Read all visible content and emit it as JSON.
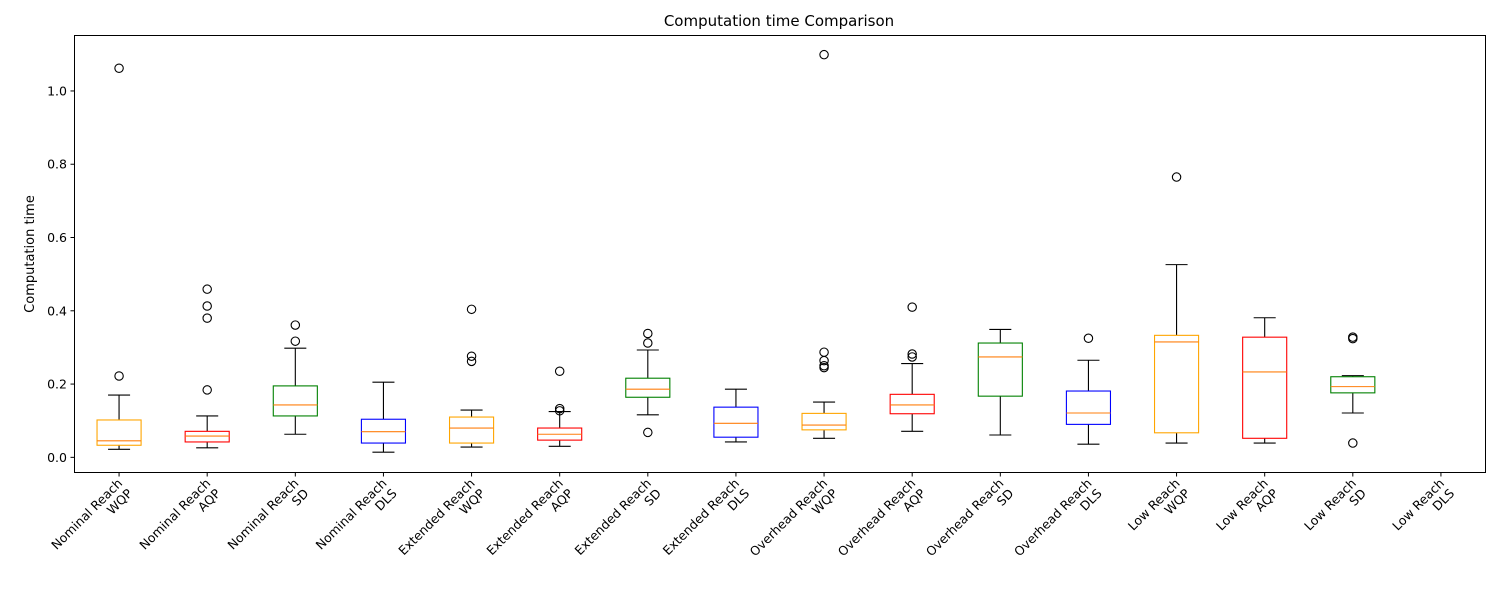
{
  "chart_data": {
    "type": "box",
    "title": "Computation time Comparison",
    "xlabel": "",
    "ylabel": "Computation time",
    "ylim": [
      -0.04,
      1.15
    ],
    "yticks": [
      0.0,
      0.2,
      0.4,
      0.6,
      0.8,
      1.0
    ],
    "ytick_labels": [
      "0.0",
      "0.2",
      "0.4",
      "0.6",
      "0.8",
      "1.0"
    ],
    "grid": false,
    "legend": "none",
    "colors": {
      "WQP": "#ffa500",
      "AQP": "#ff0000",
      "SD": "#008000",
      "DLS": "#0000ff",
      "median": "#ff7f0e",
      "whisker": "#000000"
    },
    "categories": [
      {
        "label": "Nominal Reach\nWQP",
        "line1": "Nominal Reach",
        "line2": "WQP",
        "method": "WQP",
        "whislo": 0.022,
        "q1": 0.033,
        "median": 0.045,
        "q3": 0.102,
        "whishi": 0.17,
        "fliers": [
          0.222,
          1.062
        ]
      },
      {
        "label": "Nominal Reach\nAQP",
        "line1": "Nominal Reach",
        "line2": "AQP",
        "method": "AQP",
        "whislo": 0.026,
        "q1": 0.042,
        "median": 0.058,
        "q3": 0.071,
        "whishi": 0.113,
        "fliers": [
          0.184,
          0.38,
          0.413,
          0.459
        ]
      },
      {
        "label": "Nominal Reach\nSD",
        "line1": "Nominal Reach",
        "line2": "SD",
        "method": "SD",
        "whislo": 0.063,
        "q1": 0.113,
        "median": 0.143,
        "q3": 0.195,
        "whishi": 0.298,
        "fliers": [
          0.317,
          0.361
        ]
      },
      {
        "label": "Nominal Reach\nDLS",
        "line1": "Nominal Reach",
        "line2": "DLS",
        "method": "DLS",
        "whislo": 0.014,
        "q1": 0.039,
        "median": 0.07,
        "q3": 0.104,
        "whishi": 0.205,
        "fliers": []
      },
      {
        "label": "Extended Reach\nWQP",
        "line1": "Extended Reach",
        "line2": "WQP",
        "method": "WQP",
        "whislo": 0.028,
        "q1": 0.039,
        "median": 0.08,
        "q3": 0.11,
        "whishi": 0.129,
        "fliers": [
          0.262,
          0.276,
          0.404
        ]
      },
      {
        "label": "Extended Reach\nAQP",
        "line1": "Extended Reach",
        "line2": "AQP",
        "method": "AQP",
        "whislo": 0.03,
        "q1": 0.047,
        "median": 0.063,
        "q3": 0.08,
        "whishi": 0.125,
        "fliers": [
          0.127,
          0.133,
          0.235
        ]
      },
      {
        "label": "Extended Reach\nSD",
        "line1": "Extended Reach",
        "line2": "SD",
        "method": "SD",
        "whislo": 0.116,
        "q1": 0.164,
        "median": 0.186,
        "q3": 0.216,
        "whishi": 0.293,
        "fliers": [
          0.068,
          0.312,
          0.338
        ]
      },
      {
        "label": "Extended Reach\nDLS",
        "line1": "Extended Reach",
        "line2": "DLS",
        "method": "DLS",
        "whislo": 0.042,
        "q1": 0.055,
        "median": 0.093,
        "q3": 0.137,
        "whishi": 0.186,
        "fliers": []
      },
      {
        "label": "Overhead Reach\nWQP",
        "line1": "Overhead Reach",
        "line2": "WQP",
        "method": "WQP",
        "whislo": 0.052,
        "q1": 0.075,
        "median": 0.088,
        "q3": 0.12,
        "whishi": 0.151,
        "fliers": [
          0.245,
          0.25,
          0.264,
          0.287,
          1.099
        ]
      },
      {
        "label": "Overhead Reach\nAQP",
        "line1": "Overhead Reach",
        "line2": "AQP",
        "method": "AQP",
        "whislo": 0.071,
        "q1": 0.119,
        "median": 0.143,
        "q3": 0.172,
        "whishi": 0.256,
        "fliers": [
          0.274,
          0.282,
          0.41
        ]
      },
      {
        "label": "Overhead Reach\nSD",
        "line1": "Overhead Reach",
        "line2": "SD",
        "method": "SD",
        "whislo": 0.061,
        "q1": 0.167,
        "median": 0.274,
        "q3": 0.312,
        "whishi": 0.349,
        "fliers": []
      },
      {
        "label": "Overhead Reach\nDLS",
        "line1": "Overhead Reach",
        "line2": "DLS",
        "method": "DLS",
        "whislo": 0.036,
        "q1": 0.09,
        "median": 0.121,
        "q3": 0.181,
        "whishi": 0.265,
        "fliers": [
          0.325
        ]
      },
      {
        "label": "Low Reach\nWQP",
        "line1": "Low Reach",
        "line2": "WQP",
        "method": "WQP",
        "whislo": 0.039,
        "q1": 0.067,
        "median": 0.315,
        "q3": 0.333,
        "whishi": 0.526,
        "fliers": [
          0.765
        ]
      },
      {
        "label": "Low Reach\nAQP",
        "line1": "Low Reach",
        "line2": "AQP",
        "method": "AQP",
        "whislo": 0.039,
        "q1": 0.052,
        "median": 0.233,
        "q3": 0.328,
        "whishi": 0.381,
        "fliers": []
      },
      {
        "label": "Low Reach\nSD",
        "line1": "Low Reach",
        "line2": "SD",
        "method": "SD",
        "whislo": 0.121,
        "q1": 0.176,
        "median": 0.193,
        "q3": 0.22,
        "whishi": 0.223,
        "fliers": [
          0.039,
          0.324,
          0.328
        ]
      },
      {
        "label": "Low Reach\nDLS",
        "line1": "Low Reach",
        "line2": "DLS",
        "method": "DLS",
        "whislo": null,
        "q1": null,
        "median": null,
        "q3": null,
        "whishi": null,
        "fliers": []
      }
    ]
  }
}
